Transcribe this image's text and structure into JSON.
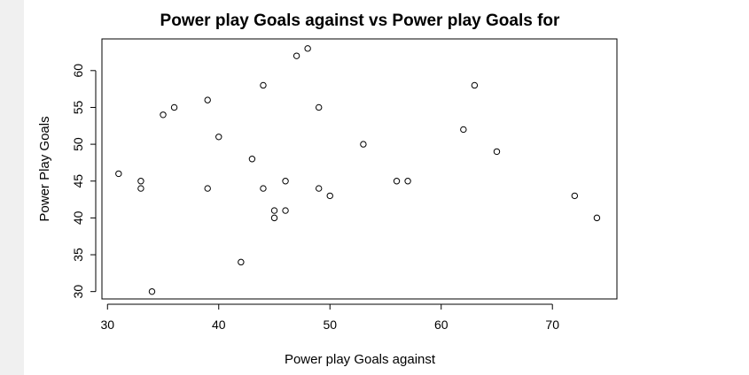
{
  "colors": {
    "background": "#ffffff",
    "left_strip": "#f0f0f0",
    "ink": "#000000"
  },
  "chart_data": {
    "type": "scatter",
    "title": "Power play Goals against vs Power play Goals for",
    "xlabel": "Power play Goals against",
    "ylabel": "Power Play Goals",
    "xlim": [
      29.5,
      75.8
    ],
    "ylim": [
      29.0,
      64.3
    ],
    "xticks": [
      30,
      40,
      50,
      60,
      70
    ],
    "yticks": [
      30,
      35,
      40,
      45,
      50,
      55,
      60
    ],
    "grid": false,
    "legend": "none",
    "points": [
      {
        "x": 31,
        "y": 46
      },
      {
        "x": 33,
        "y": 45
      },
      {
        "x": 33,
        "y": 44
      },
      {
        "x": 34,
        "y": 30
      },
      {
        "x": 35,
        "y": 54
      },
      {
        "x": 36,
        "y": 55
      },
      {
        "x": 39,
        "y": 56
      },
      {
        "x": 39,
        "y": 44
      },
      {
        "x": 40,
        "y": 51
      },
      {
        "x": 42,
        "y": 34
      },
      {
        "x": 43,
        "y": 48
      },
      {
        "x": 44,
        "y": 58
      },
      {
        "x": 44,
        "y": 44
      },
      {
        "x": 45,
        "y": 41
      },
      {
        "x": 45,
        "y": 40
      },
      {
        "x": 46,
        "y": 45
      },
      {
        "x": 46,
        "y": 41
      },
      {
        "x": 47,
        "y": 62
      },
      {
        "x": 48,
        "y": 63
      },
      {
        "x": 49,
        "y": 55
      },
      {
        "x": 49,
        "y": 44
      },
      {
        "x": 50,
        "y": 43
      },
      {
        "x": 53,
        "y": 50
      },
      {
        "x": 56,
        "y": 45
      },
      {
        "x": 57,
        "y": 45
      },
      {
        "x": 62,
        "y": 52
      },
      {
        "x": 63,
        "y": 58
      },
      {
        "x": 65,
        "y": 49
      },
      {
        "x": 72,
        "y": 43
      },
      {
        "x": 74,
        "y": 40
      }
    ]
  }
}
